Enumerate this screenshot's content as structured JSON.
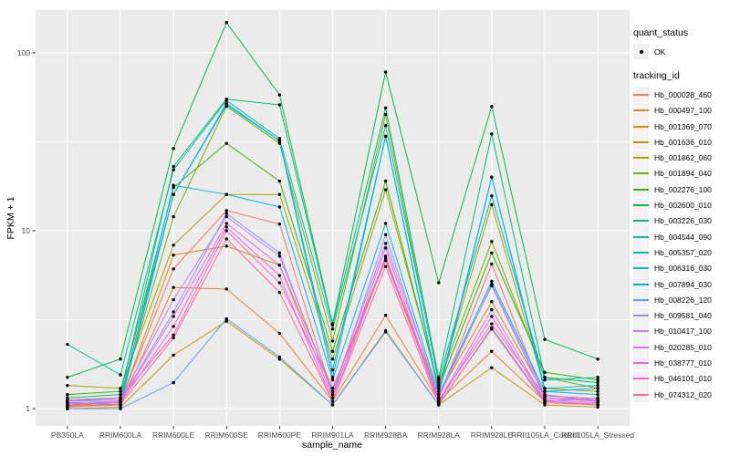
{
  "figure": {
    "background": "#FFFFFF",
    "panel_background": "#EBEBEB",
    "grid_color": "#FFFFFF",
    "tick_color": "#333333",
    "axis_text_color": "#4D4D4D",
    "point_color": "#000000"
  },
  "legend": {
    "quant_status": {
      "title": "quant_status",
      "items": [
        {
          "label": "OK",
          "symbol": "point"
        }
      ]
    },
    "tracking_id": {
      "title": "tracking_id"
    }
  },
  "chart_data": {
    "type": "line",
    "title": "",
    "xlabel": "sample_name",
    "ylabel": "FPKM + 1",
    "y_scale": "log10",
    "y_ticks": [
      1,
      10,
      100
    ],
    "y_minor_ticks": [
      3.1623,
      31.623
    ],
    "ylim": [
      0.8,
      174
    ],
    "grid": true,
    "legend_position": "right",
    "categories": [
      "PB350LA",
      "RRIM600LA",
      "RRIM600LE",
      "RRIM600SE",
      "RRIM600PE",
      "RRIM901LA",
      "RRIM928BA",
      "RRIM928LA",
      "RRIM928LE",
      "RRII105LA_Control",
      "RRII105LA_Stressed"
    ],
    "series": [
      {
        "name": "Hb_000028_460",
        "color": "#F8766D",
        "values": [
          1.05,
          1.1,
          6.1,
          13.0,
          10.9,
          1.2,
          6.9,
          1.15,
          6.5,
          1.15,
          1.1
        ]
      },
      {
        "name": "Hb_000497_100",
        "color": "#EA8331",
        "values": [
          1.02,
          1.05,
          4.8,
          4.7,
          2.65,
          1.1,
          3.35,
          1.1,
          2.1,
          1.1,
          1.05
        ]
      },
      {
        "name": "Hb_001369_070",
        "color": "#D89000",
        "values": [
          1.04,
          1.08,
          7.3,
          8.2,
          6.4,
          1.3,
          7.0,
          1.2,
          4.0,
          1.2,
          1.1
        ]
      },
      {
        "name": "Hb_001636_010",
        "color": "#C09B00",
        "values": [
          1.0,
          1.02,
          2.0,
          3.1,
          1.9,
          1.05,
          2.75,
          1.05,
          1.7,
          1.05,
          1.02
        ]
      },
      {
        "name": "Hb_001862_060",
        "color": "#A3A500",
        "values": [
          1.35,
          1.3,
          8.3,
          16.0,
          16.0,
          1.9,
          17.0,
          1.35,
          14.0,
          1.3,
          1.25
        ]
      },
      {
        "name": "Hb_001894_040",
        "color": "#7CAE00",
        "values": [
          1.1,
          1.15,
          12.0,
          50.0,
          31.0,
          2.4,
          45.0,
          1.4,
          8.7,
          1.5,
          1.3
        ]
      },
      {
        "name": "Hb_002276_100",
        "color": "#39B600",
        "values": [
          1.2,
          1.25,
          17.5,
          31.0,
          19.0,
          2.1,
          19.0,
          1.3,
          7.5,
          1.6,
          1.45
        ]
      },
      {
        "name": "Hb_002600_010",
        "color": "#00BB4E",
        "values": [
          1.5,
          1.9,
          29.0,
          148.0,
          58.0,
          3.0,
          78.0,
          5.1,
          50.0,
          2.45,
          1.9
        ]
      },
      {
        "name": "Hb_003226_030",
        "color": "#00BF7D",
        "values": [
          1.15,
          1.2,
          23.0,
          55.0,
          51.0,
          2.95,
          49.0,
          1.5,
          35.0,
          1.5,
          1.4
        ]
      },
      {
        "name": "Hb_004544_090",
        "color": "#00C1A3",
        "values": [
          2.3,
          1.55,
          22.0,
          54.0,
          33.0,
          2.8,
          39.0,
          1.45,
          15.7,
          1.45,
          1.5
        ]
      },
      {
        "name": "Hb_005357_020",
        "color": "#00BFC4",
        "values": [
          1.1,
          1.15,
          16.0,
          52.0,
          32.0,
          1.65,
          34.0,
          1.25,
          20.0,
          1.3,
          1.35
        ]
      },
      {
        "name": "Hb_006316_030",
        "color": "#00BAE0",
        "values": [
          1.05,
          1.1,
          18.0,
          16.0,
          13.6,
          1.45,
          11.0,
          1.2,
          5.2,
          1.25,
          1.2
        ]
      },
      {
        "name": "Hb_007894_030",
        "color": "#00B0F6",
        "values": [
          1.08,
          1.05,
          16.0,
          51.0,
          32.0,
          1.5,
          34.0,
          1.2,
          20.0,
          1.25,
          1.3
        ]
      },
      {
        "name": "Hb_008226_120",
        "color": "#619CFF",
        "values": [
          1.0,
          1.0,
          1.4,
          3.2,
          1.95,
          1.05,
          2.7,
          1.05,
          2.85,
          1.1,
          1.15
        ]
      },
      {
        "name": "Hb_009581_040",
        "color": "#9590FF",
        "values": [
          1.05,
          1.1,
          3.5,
          12.5,
          7.5,
          1.2,
          9.5,
          1.15,
          5.0,
          1.2,
          1.1
        ]
      },
      {
        "name": "Hb_010417_100",
        "color": "#C77CFF",
        "values": [
          1.1,
          1.12,
          4.1,
          12.0,
          7.2,
          1.25,
          8.5,
          1.2,
          4.9,
          1.15,
          1.12
        ]
      },
      {
        "name": "Hb_020285_010",
        "color": "#E76BF3",
        "values": [
          1.08,
          1.1,
          3.3,
          11.0,
          6.4,
          1.15,
          8.0,
          1.1,
          3.6,
          1.12,
          1.08
        ]
      },
      {
        "name": "Hb_038777_010",
        "color": "#FA62DB",
        "values": [
          1.06,
          1.08,
          2.9,
          10.5,
          5.6,
          1.1,
          7.2,
          1.08,
          3.3,
          1.1,
          1.06
        ]
      },
      {
        "name": "Hb_046101_010",
        "color": "#FF62BC",
        "values": [
          1.12,
          1.15,
          2.6,
          10.0,
          5.1,
          1.3,
          6.8,
          1.12,
          3.0,
          1.18,
          1.14
        ]
      },
      {
        "name": "Hb_074312_020",
        "color": "#FF6A98",
        "values": [
          1.03,
          1.06,
          2.5,
          9.0,
          4.5,
          1.1,
          6.3,
          1.06,
          2.8,
          1.08,
          1.05
        ]
      }
    ]
  }
}
